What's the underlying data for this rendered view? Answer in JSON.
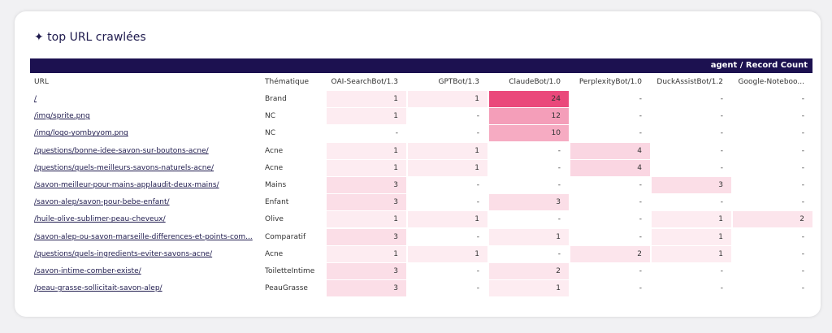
{
  "card": {
    "title": "✦ top URL crawlées",
    "bar_label": "agent / Record Count"
  },
  "table": {
    "columns": [
      "URL",
      "Thématique",
      "OAI-SearchBot/1.3",
      "GPTBot/1.3",
      "ClaudeBot/1.0",
      "PerplexityBot/1.0",
      "DuckAssistBot/1.2",
      "Google-Noteboo..."
    ],
    "rows": [
      {
        "url": "/",
        "theme": "Brand",
        "cells": [
          1,
          1,
          24,
          "-",
          "-",
          "-"
        ]
      },
      {
        "url": "/img/sprite.png",
        "theme": "NC",
        "cells": [
          1,
          "-",
          12,
          "-",
          "-",
          "-"
        ]
      },
      {
        "url": "/img/logo-yombyyom.png",
        "theme": "NC",
        "cells": [
          "-",
          "-",
          10,
          "-",
          "-",
          "-"
        ]
      },
      {
        "url": "/questions/bonne-idee-savon-sur-boutons-acne/",
        "theme": "Acne",
        "cells": [
          1,
          1,
          "-",
          4,
          "-",
          "-"
        ]
      },
      {
        "url": "/questions/quels-meilleurs-savons-naturels-acne/",
        "theme": "Acne",
        "cells": [
          1,
          1,
          "-",
          4,
          "-",
          "-"
        ]
      },
      {
        "url": "/savon-meilleur-pour-mains-applaudit-deux-mains/",
        "theme": "Mains",
        "cells": [
          3,
          "-",
          "-",
          "-",
          3,
          "-"
        ]
      },
      {
        "url": "/savon-alep/savon-pour-bebe-enfant/",
        "theme": "Enfant",
        "cells": [
          3,
          "-",
          3,
          "-",
          "-",
          "-"
        ]
      },
      {
        "url": "/huile-olive-sublimer-peau-cheveux/",
        "theme": "Olive",
        "cells": [
          1,
          1,
          "-",
          "-",
          1,
          2
        ]
      },
      {
        "url": "/savon-alep-ou-savon-marseille-differences-et-points-com...",
        "theme": "Comparatif",
        "cells": [
          3,
          "-",
          1,
          "-",
          1,
          "-"
        ]
      },
      {
        "url": "/questions/quels-ingredients-eviter-savons-acne/",
        "theme": "Acne",
        "cells": [
          1,
          1,
          "-",
          2,
          1,
          "-"
        ]
      },
      {
        "url": "/savon-intime-comber-existe/",
        "theme": "ToiletteIntime",
        "cells": [
          3,
          "-",
          2,
          "-",
          "-",
          "-"
        ]
      },
      {
        "url": "/peau-grasse-sollicitait-savon-alep/",
        "theme": "PeauGrasse",
        "cells": [
          3,
          "-",
          1,
          "-",
          "-",
          "-"
        ]
      }
    ]
  }
}
